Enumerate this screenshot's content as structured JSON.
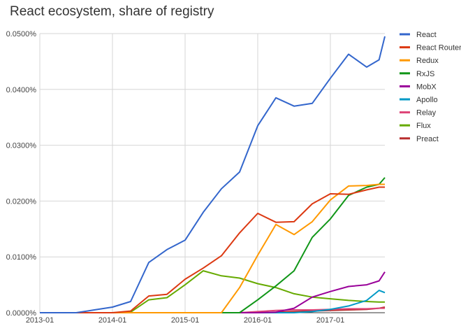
{
  "chart_data": {
    "type": "line",
    "title": "React ecosystem, share of registry",
    "xlabel": "",
    "ylabel": "",
    "ylim": [
      0,
      0.05
    ],
    "grid": true,
    "legend_position": "right",
    "y_ticks": [
      "0.0000%",
      "0.0100%",
      "0.0200%",
      "0.0300%",
      "0.0400%",
      "0.0500%"
    ],
    "x_ticks": [
      "2013-01",
      "2014-01",
      "2015-01",
      "2016-01",
      "2017-01"
    ],
    "x": [
      2013.0,
      2013.25,
      2013.5,
      2013.75,
      2014.0,
      2014.25,
      2014.5,
      2014.75,
      2015.0,
      2015.25,
      2015.5,
      2015.75,
      2016.0,
      2016.25,
      2016.5,
      2016.75,
      2017.0,
      2017.25,
      2017.5,
      2017.67,
      2017.75
    ],
    "series": [
      {
        "name": "React",
        "color": "#3366cc",
        "values": [
          0,
          0,
          0,
          0.0005,
          0.001,
          0.002,
          0.009,
          0.0113,
          0.013,
          0.018,
          0.0222,
          0.0252,
          0.0335,
          0.0385,
          0.037,
          0.0375,
          0.042,
          0.0463,
          0.044,
          0.0453,
          0.0495
        ]
      },
      {
        "name": "React Router",
        "color": "#dc3912",
        "values": [
          0,
          0,
          0,
          0,
          0,
          0.0003,
          0.003,
          0.0033,
          0.006,
          0.008,
          0.0102,
          0.0143,
          0.0178,
          0.0162,
          0.0163,
          0.0195,
          0.0213,
          0.0212,
          0.022,
          0.0225,
          0.0225
        ]
      },
      {
        "name": "Redux",
        "color": "#ff9900",
        "values": [
          0,
          0,
          0,
          0,
          0,
          0,
          0,
          0,
          0,
          0,
          0,
          0.0045,
          0.0103,
          0.0158,
          0.014,
          0.0163,
          0.0202,
          0.0227,
          0.0228,
          0.023,
          0.023
        ]
      },
      {
        "name": "RxJS",
        "color": "#109618",
        "values": [
          0,
          0,
          0,
          0,
          0,
          0,
          0,
          0,
          0,
          0,
          0,
          0,
          0.0023,
          0.0048,
          0.0075,
          0.0135,
          0.0168,
          0.021,
          0.0225,
          0.023,
          0.0242
        ]
      },
      {
        "name": "MobX",
        "color": "#990099",
        "values": [
          0,
          0,
          0,
          0,
          0,
          0,
          0,
          0,
          0,
          0,
          0,
          0,
          0,
          0.0001,
          0.0008,
          0.0028,
          0.0038,
          0.0047,
          0.005,
          0.0057,
          0.0073
        ]
      },
      {
        "name": "Apollo",
        "color": "#0099c6",
        "values": [
          0,
          0,
          0,
          0,
          0,
          0,
          0,
          0,
          0,
          0,
          0,
          0,
          0,
          0,
          0,
          0.0002,
          0.0006,
          0.0012,
          0.0022,
          0.004,
          0.0036
        ]
      },
      {
        "name": "Relay",
        "color": "#dd4477",
        "values": [
          0,
          0,
          0,
          0,
          0,
          0,
          0,
          0,
          0,
          0,
          0,
          0,
          0.0002,
          0.0004,
          0.0005,
          0.0005,
          0.0006,
          0.0007,
          0.0007,
          0.0008,
          0.0008
        ]
      },
      {
        "name": "Flux",
        "color": "#66aa00",
        "values": [
          0,
          0,
          0,
          0,
          0,
          0.0001,
          0.0023,
          0.0027,
          0.005,
          0.0075,
          0.0066,
          0.0062,
          0.0052,
          0.0045,
          0.0034,
          0.0028,
          0.0025,
          0.0022,
          0.002,
          0.0019,
          0.0019
        ]
      },
      {
        "name": "Preact",
        "color": "#b82e2e",
        "values": [
          0,
          0,
          0,
          0,
          0,
          0,
          0,
          0,
          0,
          0,
          0,
          0,
          0,
          0.0001,
          0.0002,
          0.0003,
          0.0004,
          0.0005,
          0.0006,
          0.0008,
          0.001
        ]
      }
    ]
  }
}
